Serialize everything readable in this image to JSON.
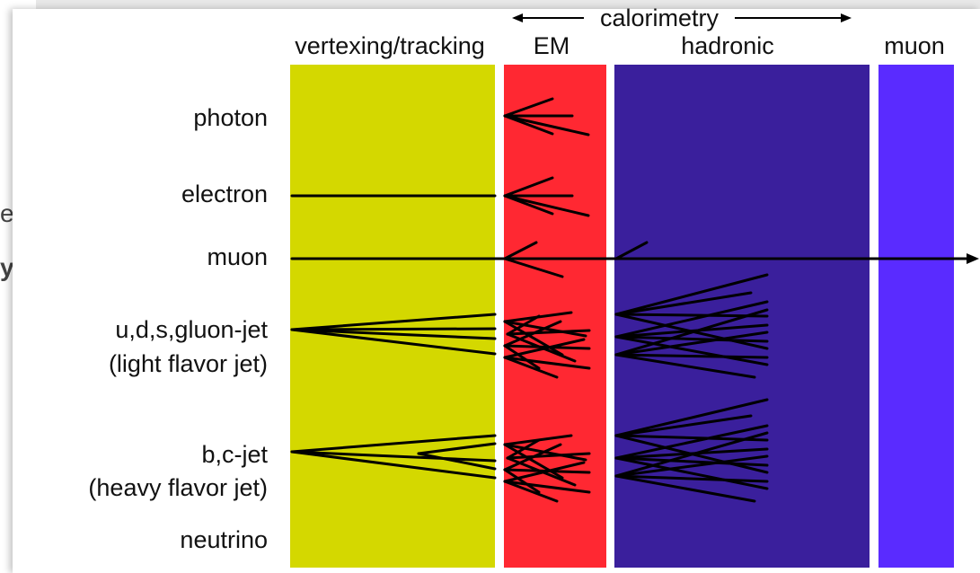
{
  "slide_fragment": {
    "line1": "er",
    "line2": "y"
  },
  "headers": {
    "calorimetry": "calorimetry",
    "tracking": "vertexing/tracking",
    "em": "EM",
    "hadronic": "hadronic",
    "muon": "muon"
  },
  "particles": {
    "photon": "photon",
    "electron": "electron",
    "muon": "muon",
    "light_jet_1": "u,d,s,gluon-jet",
    "light_jet_2": "(light flavor jet)",
    "heavy_jet_1": "b,c-jet",
    "heavy_jet_2": "(heavy flavor jet)",
    "neutrino": "neutrino"
  },
  "colors": {
    "tracking": "#d4d800",
    "em": "#ff2832",
    "hadronic": "#3a1f9c",
    "muon": "#5a2bff",
    "line": "#000000"
  }
}
